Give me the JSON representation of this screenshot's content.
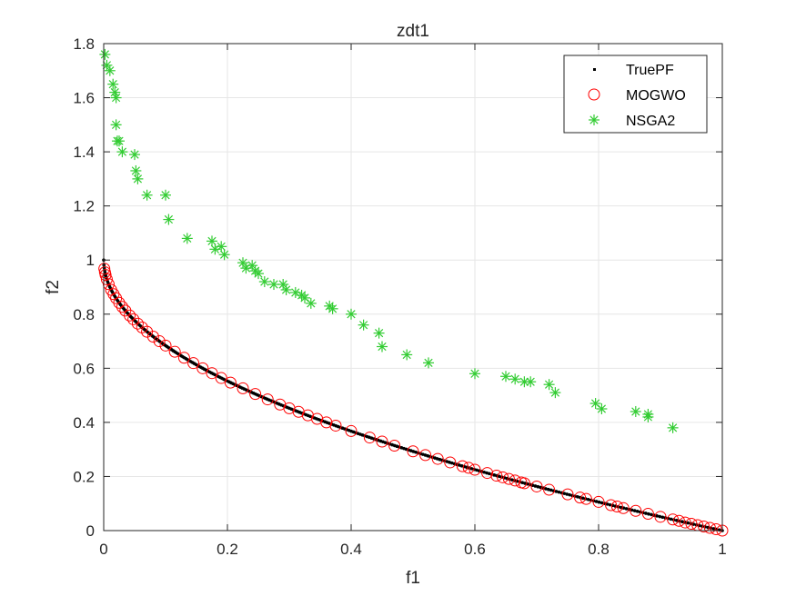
{
  "chart_data": {
    "type": "scatter",
    "title": "zdt1",
    "xlabel": "f1",
    "ylabel": "f2",
    "xlim": [
      0,
      1
    ],
    "ylim": [
      0,
      1.8
    ],
    "xticks": [
      0,
      0.2,
      0.4,
      0.6,
      0.8,
      1
    ],
    "xtick_labels": [
      "0",
      "0.2",
      "0.4",
      "0.6",
      "0.8",
      "1"
    ],
    "yticks": [
      0,
      0.2,
      0.4,
      0.6,
      0.8,
      1,
      1.2,
      1.4,
      1.6,
      1.8
    ],
    "ytick_labels": [
      "0",
      "0.2",
      "0.4",
      "0.6",
      "0.8",
      "1",
      "1.2",
      "1.4",
      "1.6",
      "1.8"
    ],
    "grid": true,
    "legend_position": "top-right",
    "series": [
      {
        "name": "TruePF",
        "marker": "dot",
        "color": "#000000",
        "curve": "f2 = 1 - sqrt(f1)",
        "x": [
          0,
          0.001,
          0.002,
          0.004,
          0.006,
          0.008,
          0.01,
          0.013,
          0.016,
          0.02,
          0.025,
          0.03,
          0.035,
          0.04,
          0.045,
          0.05,
          0.06,
          0.07,
          0.08,
          0.09,
          0.1,
          0.11,
          0.12,
          0.13,
          0.14,
          0.15,
          0.16,
          0.17,
          0.18,
          0.19,
          0.2,
          0.22,
          0.24,
          0.26,
          0.28,
          0.3,
          0.32,
          0.34,
          0.36,
          0.38,
          0.4,
          0.42,
          0.44,
          0.46,
          0.48,
          0.5,
          0.52,
          0.54,
          0.56,
          0.58,
          0.6,
          0.62,
          0.64,
          0.66,
          0.68,
          0.7,
          0.72,
          0.74,
          0.76,
          0.78,
          0.8,
          0.82,
          0.84,
          0.86,
          0.88,
          0.9,
          0.92,
          0.94,
          0.96,
          0.98,
          1
        ],
        "y": [
          1,
          0.968,
          0.955,
          0.937,
          0.923,
          0.911,
          0.9,
          0.886,
          0.874,
          0.859,
          0.842,
          0.827,
          0.813,
          0.8,
          0.788,
          0.776,
          0.755,
          0.735,
          0.717,
          0.7,
          0.684,
          0.668,
          0.654,
          0.639,
          0.626,
          0.613,
          0.6,
          0.588,
          0.576,
          0.564,
          0.553,
          0.531,
          0.51,
          0.49,
          0.471,
          0.452,
          0.434,
          0.417,
          0.4,
          0.384,
          0.368,
          0.352,
          0.337,
          0.322,
          0.307,
          0.293,
          0.279,
          0.265,
          0.252,
          0.238,
          0.225,
          0.213,
          0.2,
          0.188,
          0.175,
          0.163,
          0.151,
          0.14,
          0.128,
          0.117,
          0.106,
          0.094,
          0.083,
          0.073,
          0.062,
          0.051,
          0.041,
          0.03,
          0.02,
          0.01,
          0
        ]
      },
      {
        "name": "MOGWO",
        "marker": "circle",
        "color": "#ff0000",
        "x": [
          0.001,
          0.002,
          0.003,
          0.005,
          0.008,
          0.012,
          0.016,
          0.02,
          0.025,
          0.03,
          0.035,
          0.042,
          0.048,
          0.055,
          0.062,
          0.07,
          0.08,
          0.09,
          0.1,
          0.115,
          0.13,
          0.145,
          0.16,
          0.175,
          0.19,
          0.205,
          0.225,
          0.245,
          0.265,
          0.285,
          0.3,
          0.315,
          0.33,
          0.345,
          0.36,
          0.375,
          0.4,
          0.43,
          0.45,
          0.47,
          0.5,
          0.52,
          0.54,
          0.56,
          0.58,
          0.59,
          0.6,
          0.62,
          0.635,
          0.645,
          0.655,
          0.665,
          0.675,
          0.68,
          0.7,
          0.72,
          0.75,
          0.77,
          0.78,
          0.8,
          0.82,
          0.83,
          0.84,
          0.86,
          0.88,
          0.9,
          0.92,
          0.93,
          0.94,
          0.95,
          0.96,
          0.97,
          0.98,
          0.99,
          1
        ],
        "y": [
          0.968,
          0.955,
          0.945,
          0.929,
          0.911,
          0.89,
          0.874,
          0.859,
          0.842,
          0.827,
          0.813,
          0.795,
          0.781,
          0.765,
          0.751,
          0.735,
          0.717,
          0.7,
          0.684,
          0.661,
          0.639,
          0.619,
          0.6,
          0.582,
          0.564,
          0.547,
          0.526,
          0.505,
          0.485,
          0.466,
          0.452,
          0.439,
          0.426,
          0.413,
          0.4,
          0.388,
          0.368,
          0.344,
          0.329,
          0.314,
          0.293,
          0.279,
          0.265,
          0.252,
          0.238,
          0.232,
          0.225,
          0.213,
          0.203,
          0.197,
          0.191,
          0.185,
          0.178,
          0.175,
          0.163,
          0.151,
          0.134,
          0.122,
          0.117,
          0.106,
          0.094,
          0.089,
          0.083,
          0.073,
          0.062,
          0.051,
          0.041,
          0.036,
          0.03,
          0.025,
          0.02,
          0.015,
          0.01,
          0.005,
          0
        ]
      },
      {
        "name": "NSGA2",
        "marker": "asterisk",
        "color": "#33cc33",
        "x": [
          0.002,
          0.005,
          0.01,
          0.015,
          0.018,
          0.02,
          0.02,
          0.022,
          0.025,
          0.03,
          0.05,
          0.052,
          0.055,
          0.07,
          0.1,
          0.105,
          0.135,
          0.175,
          0.18,
          0.19,
          0.195,
          0.225,
          0.23,
          0.24,
          0.245,
          0.25,
          0.26,
          0.275,
          0.29,
          0.295,
          0.31,
          0.32,
          0.325,
          0.335,
          0.365,
          0.37,
          0.4,
          0.42,
          0.445,
          0.45,
          0.49,
          0.525,
          0.6,
          0.65,
          0.665,
          0.68,
          0.69,
          0.72,
          0.73,
          0.795,
          0.805,
          0.86,
          0.88,
          0.88,
          0.92
        ],
        "y": [
          1.76,
          1.72,
          1.7,
          1.65,
          1.62,
          1.6,
          1.5,
          1.44,
          1.44,
          1.4,
          1.39,
          1.33,
          1.3,
          1.24,
          1.24,
          1.15,
          1.08,
          1.07,
          1.04,
          1.05,
          1.02,
          0.99,
          0.97,
          0.98,
          0.96,
          0.95,
          0.92,
          0.91,
          0.91,
          0.89,
          0.88,
          0.87,
          0.86,
          0.84,
          0.83,
          0.82,
          0.8,
          0.76,
          0.73,
          0.68,
          0.65,
          0.62,
          0.58,
          0.57,
          0.56,
          0.55,
          0.55,
          0.54,
          0.51,
          0.47,
          0.45,
          0.44,
          0.43,
          0.42,
          0.38
        ]
      }
    ]
  }
}
